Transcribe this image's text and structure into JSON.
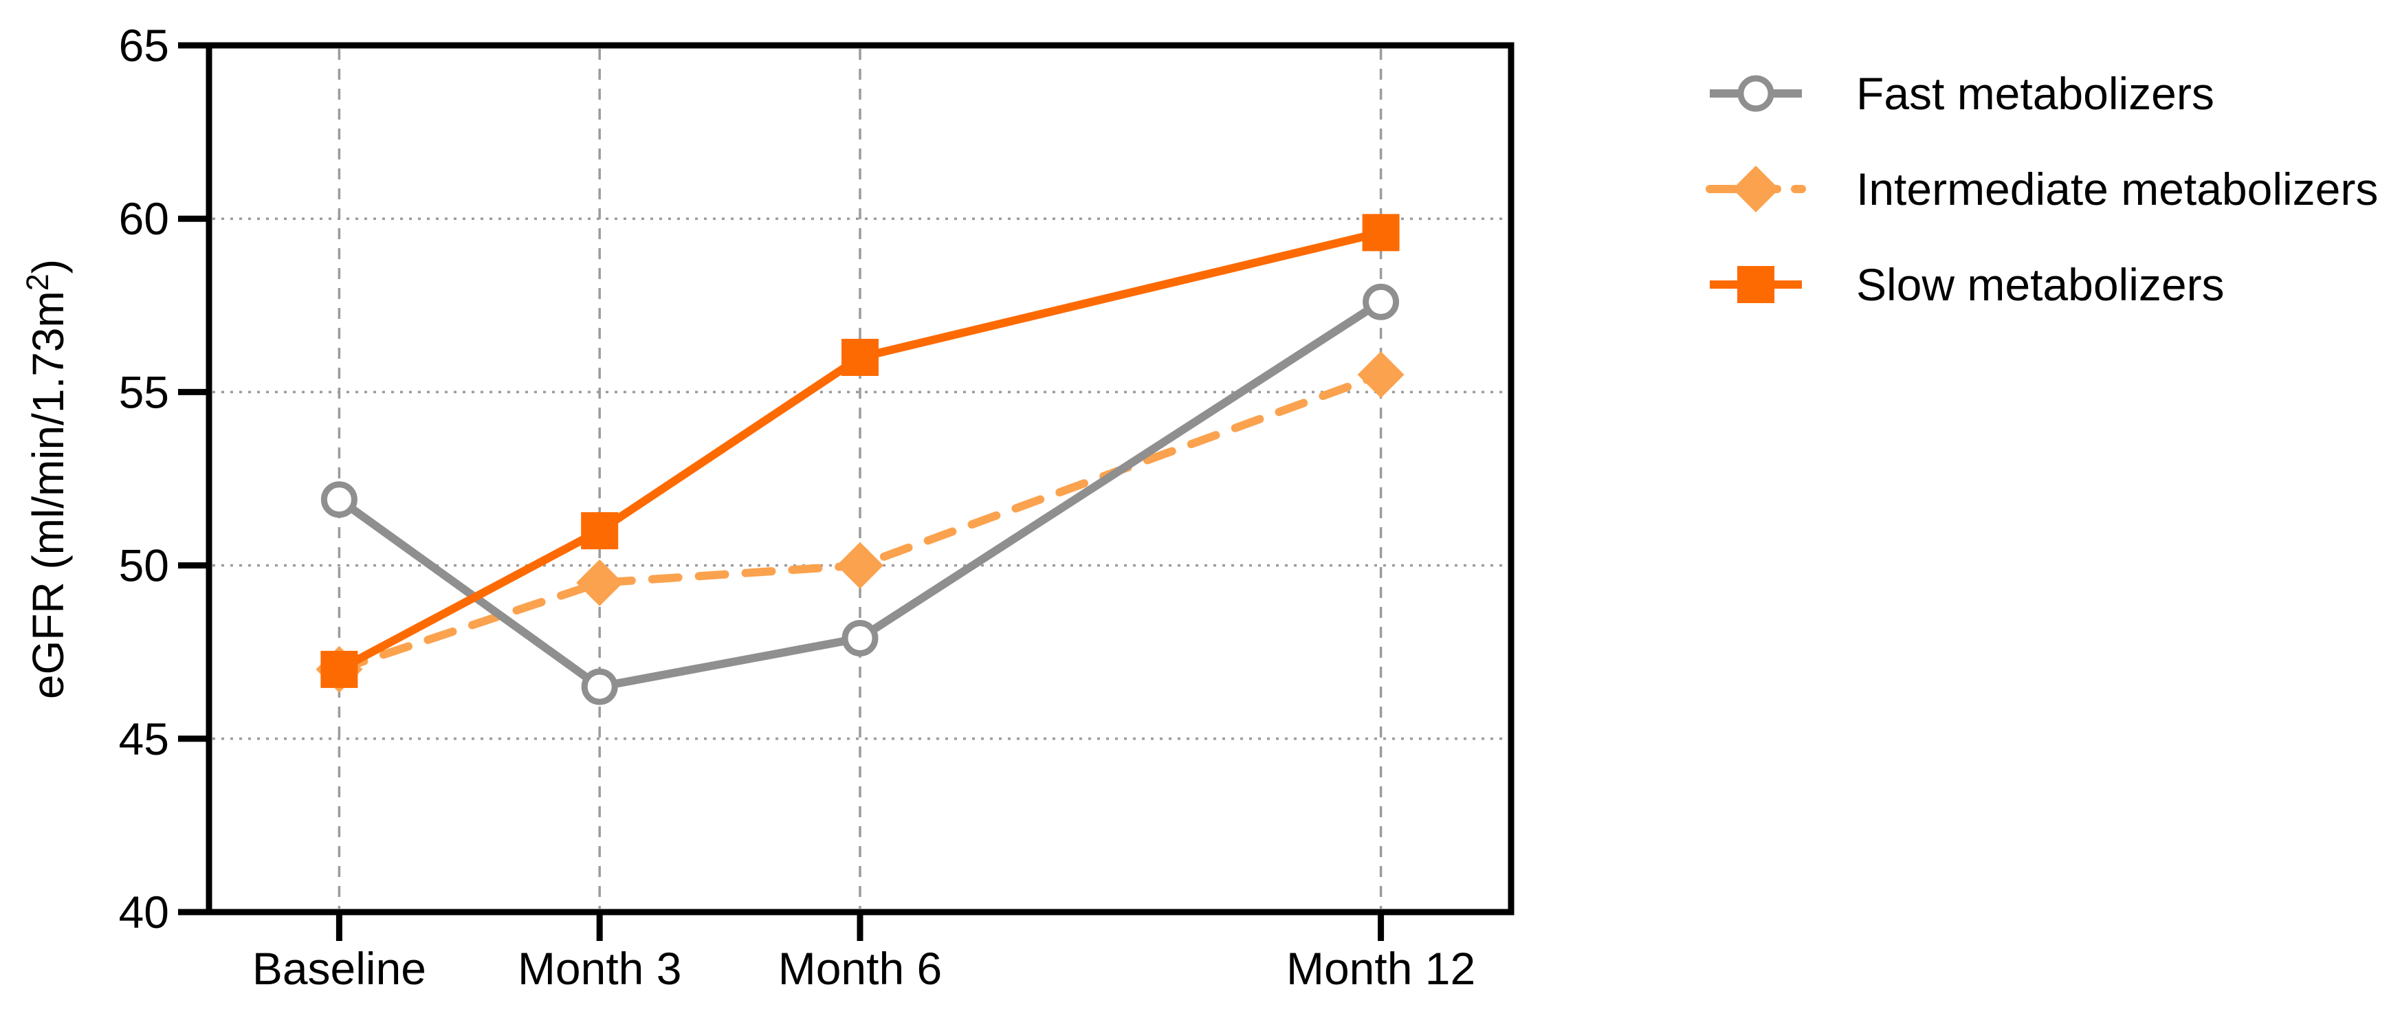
{
  "page": {
    "background": "#ffffff"
  },
  "chart_data": {
    "type": "line",
    "title": "",
    "xlabel": "",
    "ylabel": "eGFR (ml/min/1.73m²)",
    "ylabel_parts": {
      "main": "eGFR (ml/min/1.73m",
      "sup": "2",
      "end": ")"
    },
    "categories": [
      "Baseline",
      "Month 3",
      "Month 6",
      "Month 12"
    ],
    "x_months": [
      0,
      3,
      6,
      12
    ],
    "xlim_months": [
      -1.5,
      13.5
    ],
    "ylim": [
      40,
      65
    ],
    "yticks": [
      40,
      45,
      50,
      55,
      60,
      65
    ],
    "grid": {
      "horizontal_style": "dotted",
      "vertical_style": "dashed",
      "color": "#9b9b9b"
    },
    "axis_color": "#000000",
    "legend_position": "right-outside-top",
    "series": [
      {
        "name": "Fast metabolizers",
        "values": [
          51.9,
          46.5,
          47.9,
          57.6
        ],
        "color": "#8f8f8f",
        "line_style": "solid",
        "marker": "open-circle",
        "z": 1
      },
      {
        "name": "Intermediate metabolizers",
        "values": [
          47.0,
          49.5,
          50.0,
          55.5
        ],
        "color": "#fba24e",
        "line_style": "dashed",
        "marker": "filled-diamond",
        "z": 0
      },
      {
        "name": "Slow metabolizers",
        "values": [
          47.0,
          51.0,
          56.0,
          59.6
        ],
        "color": "#fd6a02",
        "line_style": "solid",
        "marker": "filled-square",
        "z": 2
      }
    ]
  }
}
